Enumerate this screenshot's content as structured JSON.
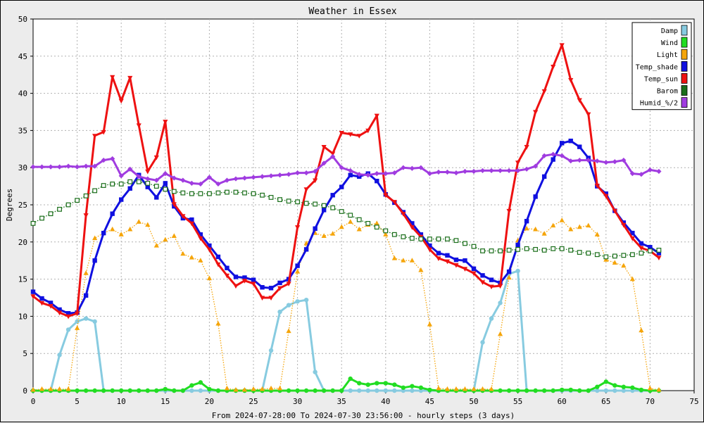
{
  "chart_data": {
    "type": "line",
    "title": "Weather in Essex",
    "xlabel": "From 2024-07-28:00 To 2024-07-30 23:56:00 - hourly steps (3 days)",
    "ylabel": "Degrees",
    "xlim": [
      0,
      75
    ],
    "ylim": [
      0,
      50
    ],
    "xticks": [
      0,
      5,
      10,
      15,
      20,
      25,
      30,
      35,
      40,
      45,
      50,
      55,
      60,
      65,
      70,
      75
    ],
    "yticks": [
      0,
      5,
      10,
      15,
      20,
      25,
      30,
      35,
      40,
      45,
      50
    ],
    "grid": true,
    "legend_position": "top-right",
    "series": [
      {
        "name": "Damp",
        "color": "#87cbe0",
        "marker": "circle",
        "style": "solid",
        "x": [
          0,
          1,
          2,
          3,
          4,
          5,
          6,
          7,
          8,
          9,
          10,
          11,
          12,
          13,
          14,
          15,
          16,
          17,
          18,
          19,
          20,
          21,
          22,
          23,
          24,
          25,
          26,
          27,
          28,
          29,
          30,
          31,
          32,
          33,
          34,
          35,
          36,
          37,
          38,
          39,
          40,
          41,
          42,
          43,
          44,
          45,
          46,
          47,
          48,
          49,
          50,
          51,
          52,
          53,
          54,
          55,
          56,
          57,
          58,
          59,
          60,
          61,
          62,
          63,
          64,
          65,
          66,
          67,
          68,
          69,
          70,
          71
        ],
        "y": [
          0,
          0,
          0,
          4.8,
          8.2,
          9.3,
          9.7,
          9.3,
          0,
          0,
          0,
          0,
          0,
          0,
          0,
          0,
          0,
          0,
          0,
          0,
          0,
          0,
          0,
          0,
          0,
          0,
          0,
          5.4,
          10.6,
          11.5,
          12.0,
          12.2,
          2.5,
          0,
          0,
          0,
          0,
          0,
          0,
          0,
          0,
          0,
          0,
          0,
          0,
          0,
          0,
          0,
          0,
          0,
          0,
          6.5,
          9.7,
          11.8,
          15.7,
          16.1,
          0,
          0,
          0,
          0,
          0,
          0,
          0,
          0,
          0,
          0,
          0,
          0,
          0,
          0,
          0,
          0
        ]
      },
      {
        "name": "Wind",
        "color": "#22dd22",
        "marker": "circle",
        "style": "solid",
        "x": [
          0,
          1,
          2,
          3,
          4,
          5,
          6,
          7,
          8,
          9,
          10,
          11,
          12,
          13,
          14,
          15,
          16,
          17,
          18,
          19,
          20,
          21,
          22,
          23,
          24,
          25,
          26,
          27,
          28,
          29,
          30,
          31,
          32,
          33,
          34,
          35,
          36,
          37,
          38,
          39,
          40,
          41,
          42,
          43,
          44,
          45,
          46,
          47,
          48,
          49,
          50,
          51,
          52,
          53,
          54,
          55,
          56,
          57,
          58,
          59,
          60,
          61,
          62,
          63,
          64,
          65,
          66,
          67,
          68,
          69,
          70,
          71
        ],
        "y": [
          0,
          0,
          0,
          0,
          0,
          0,
          0,
          0,
          0,
          0,
          0,
          0,
          0,
          0,
          0,
          0.2,
          0,
          0,
          0.7,
          1.1,
          0.2,
          0,
          0,
          0,
          0,
          0,
          0,
          0,
          0,
          0,
          0,
          0,
          0,
          0,
          0,
          0,
          1.6,
          1.0,
          0.8,
          1.0,
          1.0,
          0.8,
          0.4,
          0.6,
          0.4,
          0.1,
          0,
          0,
          0,
          0,
          0,
          0,
          0,
          0,
          0,
          0,
          0,
          0,
          0,
          0,
          0.1,
          0.1,
          0,
          0,
          0.5,
          1.2,
          0.7,
          0.5,
          0.4,
          0.1,
          0,
          0
        ]
      },
      {
        "name": "Light",
        "color": "#f5a50a",
        "marker": "triangle",
        "style": "dotted",
        "x": [
          0,
          1,
          2,
          3,
          4,
          5,
          6,
          7,
          8,
          9,
          10,
          11,
          12,
          13,
          14,
          15,
          16,
          17,
          18,
          19,
          20,
          21,
          22,
          23,
          24,
          25,
          26,
          27,
          28,
          29,
          30,
          31,
          32,
          33,
          34,
          35,
          36,
          37,
          38,
          39,
          40,
          41,
          42,
          43,
          44,
          45,
          46,
          47,
          48,
          49,
          50,
          51,
          52,
          53,
          54,
          55,
          56,
          57,
          58,
          59,
          60,
          61,
          62,
          63,
          64,
          65,
          66,
          67,
          68,
          69,
          70,
          71
        ],
        "y": [
          0.1,
          0.2,
          0.2,
          0.2,
          0.2,
          8.4,
          15.8,
          20.5,
          21.2,
          21.7,
          21.0,
          21.7,
          22.7,
          22.3,
          19.5,
          20.3,
          20.8,
          18.4,
          17.9,
          17.5,
          15.1,
          9.0,
          0.3,
          0.1,
          0.1,
          0.2,
          0.2,
          0.3,
          0.3,
          8.0,
          16.0,
          19.8,
          21.2,
          20.8,
          21.1,
          22.0,
          22.7,
          21.7,
          22.3,
          22.5,
          21.0,
          17.8,
          17.5,
          17.5,
          16.2,
          8.9,
          0.3,
          0.2,
          0.2,
          0.2,
          0.2,
          0.2,
          0.2,
          7.6,
          15.2,
          20.2,
          21.8,
          21.7,
          21.1,
          22.2,
          22.9,
          21.7,
          22.0,
          22.2,
          21.0,
          17.6,
          17.2,
          16.8,
          15.0,
          8.1,
          0.3,
          0.1
        ]
      },
      {
        "name": "Temp_shade",
        "color": "#1010e0",
        "marker": "square",
        "style": "solid",
        "x": [
          0,
          1,
          2,
          3,
          4,
          5,
          6,
          7,
          8,
          9,
          10,
          11,
          12,
          13,
          14,
          15,
          16,
          17,
          18,
          19,
          20,
          21,
          22,
          23,
          24,
          25,
          26,
          27,
          28,
          29,
          30,
          31,
          32,
          33,
          34,
          35,
          36,
          37,
          38,
          39,
          40,
          41,
          42,
          43,
          44,
          45,
          46,
          47,
          48,
          49,
          50,
          51,
          52,
          53,
          54,
          55,
          56,
          57,
          58,
          59,
          60,
          61,
          62,
          63,
          64,
          65,
          66,
          67,
          68,
          69,
          70,
          71
        ],
        "y": [
          13.3,
          12.4,
          11.8,
          10.9,
          10.4,
          10.5,
          12.8,
          17.5,
          21.2,
          23.8,
          25.7,
          27.2,
          29.0,
          27.4,
          26.0,
          27.9,
          24.8,
          23.2,
          23.0,
          21.0,
          19.5,
          18.0,
          16.5,
          15.3,
          15.2,
          14.9,
          13.9,
          13.8,
          14.5,
          15.0,
          16.8,
          19.0,
          21.8,
          24.3,
          26.3,
          27.4,
          29.0,
          28.8,
          29.2,
          28.2,
          26.4,
          25.3,
          24.0,
          22.5,
          21.0,
          19.5,
          18.5,
          18.2,
          17.6,
          17.5,
          16.4,
          15.5,
          14.9,
          14.5,
          16.0,
          19.6,
          22.8,
          26.1,
          28.8,
          31.1,
          33.3,
          33.6,
          32.8,
          31.3,
          27.5,
          26.5,
          24.2,
          22.6,
          21.2,
          19.8,
          19.3,
          18.5
        ]
      },
      {
        "name": "Temp_sun",
        "color": "#ee1111",
        "marker": "triangle-down",
        "style": "solid",
        "x": [
          0,
          1,
          2,
          3,
          4,
          5,
          6,
          7,
          8,
          9,
          10,
          11,
          12,
          13,
          14,
          15,
          16,
          17,
          18,
          19,
          20,
          21,
          22,
          23,
          24,
          25,
          26,
          27,
          28,
          29,
          30,
          31,
          32,
          33,
          34,
          35,
          36,
          37,
          38,
          39,
          40,
          41,
          42,
          43,
          44,
          45,
          46,
          47,
          48,
          49,
          50,
          51,
          52,
          53,
          54,
          55,
          56,
          57,
          58,
          59,
          60,
          61,
          62,
          63,
          64,
          65,
          66,
          67,
          68,
          69,
          70,
          71
        ],
        "y": [
          12.7,
          11.8,
          11.4,
          10.5,
          10.0,
          10.4,
          23.6,
          34.3,
          34.8,
          42.2,
          39.0,
          42.1,
          35.7,
          29.5,
          31.4,
          36.2,
          25.1,
          23.5,
          22.5,
          20.5,
          19.0,
          17.0,
          15.5,
          14.1,
          14.8,
          14.4,
          12.5,
          12.5,
          13.8,
          14.4,
          22.0,
          27.1,
          28.3,
          32.8,
          31.9,
          34.7,
          34.5,
          34.3,
          35.0,
          37.0,
          26.3,
          25.4,
          23.8,
          22.0,
          20.7,
          19.0,
          17.8,
          17.4,
          16.9,
          16.4,
          15.8,
          14.6,
          14.0,
          14.1,
          24.2,
          30.7,
          32.8,
          37.5,
          40.3,
          43.6,
          46.5,
          41.8,
          39.1,
          37.2,
          27.6,
          26.2,
          24.2,
          22.3,
          20.5,
          19.2,
          18.8,
          17.9
        ]
      },
      {
        "name": "Barom",
        "color": "#1a6e1a",
        "marker": "square-open",
        "style": "dotted",
        "x": [
          0,
          1,
          2,
          3,
          4,
          5,
          6,
          7,
          8,
          9,
          10,
          11,
          12,
          13,
          14,
          15,
          16,
          17,
          18,
          19,
          20,
          21,
          22,
          23,
          24,
          25,
          26,
          27,
          28,
          29,
          30,
          31,
          32,
          33,
          34,
          35,
          36,
          37,
          38,
          39,
          40,
          41,
          42,
          43,
          44,
          45,
          46,
          47,
          48,
          49,
          50,
          51,
          52,
          53,
          54,
          55,
          56,
          57,
          58,
          59,
          60,
          61,
          62,
          63,
          64,
          65,
          66,
          67,
          68,
          69,
          70,
          71
        ],
        "y": [
          22.5,
          23.2,
          23.8,
          24.4,
          25.0,
          25.6,
          26.2,
          26.9,
          27.6,
          27.8,
          27.8,
          28.1,
          28.1,
          27.9,
          27.5,
          27.1,
          26.8,
          26.6,
          26.5,
          26.5,
          26.5,
          26.6,
          26.7,
          26.7,
          26.6,
          26.5,
          26.3,
          26.0,
          25.7,
          25.5,
          25.4,
          25.2,
          25.1,
          24.9,
          24.6,
          24.1,
          23.6,
          23.0,
          22.5,
          22.0,
          21.5,
          21.0,
          20.7,
          20.5,
          20.4,
          20.4,
          20.4,
          20.4,
          20.2,
          19.8,
          19.4,
          18.8,
          18.8,
          18.8,
          18.9,
          19.0,
          19.1,
          19.0,
          18.9,
          19.1,
          19.1,
          18.9,
          18.6,
          18.5,
          18.3,
          18.0,
          18.1,
          18.2,
          18.3,
          18.5,
          18.8,
          18.9
        ]
      },
      {
        "name": "Humid_%/2",
        "color": "#a03ce0",
        "marker": "diamond",
        "style": "solid",
        "x": [
          0,
          1,
          2,
          3,
          4,
          5,
          6,
          7,
          8,
          9,
          10,
          11,
          12,
          13,
          14,
          15,
          16,
          17,
          18,
          19,
          20,
          21,
          22,
          23,
          24,
          25,
          26,
          27,
          28,
          29,
          30,
          31,
          32,
          33,
          34,
          35,
          36,
          37,
          38,
          39,
          40,
          41,
          42,
          43,
          44,
          45,
          46,
          47,
          48,
          49,
          50,
          51,
          52,
          53,
          54,
          55,
          56,
          57,
          58,
          59,
          60,
          61,
          62,
          63,
          64,
          65,
          66,
          67,
          68,
          69,
          70,
          71
        ],
        "y": [
          30.1,
          30.1,
          30.1,
          30.1,
          30.2,
          30.1,
          30.2,
          30.2,
          31.0,
          31.2,
          28.9,
          29.8,
          28.8,
          28.5,
          28.3,
          29.2,
          28.6,
          28.3,
          27.9,
          27.8,
          28.7,
          27.8,
          28.3,
          28.5,
          28.6,
          28.7,
          28.8,
          28.9,
          29.0,
          29.1,
          29.3,
          29.3,
          29.5,
          30.6,
          31.5,
          30.0,
          29.6,
          29.1,
          29.0,
          29.2,
          29.2,
          29.3,
          30.0,
          29.9,
          30.0,
          29.2,
          29.4,
          29.4,
          29.3,
          29.5,
          29.5,
          29.6,
          29.6,
          29.6,
          29.6,
          29.6,
          29.8,
          30.2,
          31.6,
          31.8,
          31.6,
          30.9,
          31.0,
          31.0,
          30.9,
          30.7,
          30.8,
          31.0,
          29.2,
          29.1,
          29.7,
          29.5
        ]
      }
    ]
  }
}
